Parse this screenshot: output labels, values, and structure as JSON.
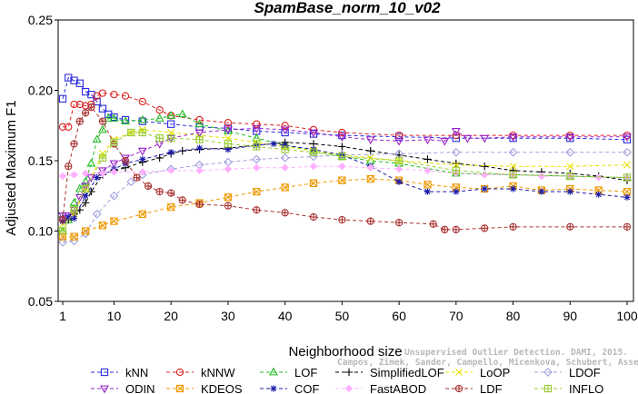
{
  "chart_data": {
    "type": "line",
    "title": "SpamBase_norm_10_v02",
    "xlabel": "Neighborhood size",
    "ylabel": "Adjusted Maximum F1",
    "xlim": [
      0,
      100
    ],
    "ylim": [
      0.05,
      0.25
    ],
    "xticks": [
      1,
      10,
      20,
      30,
      40,
      50,
      60,
      70,
      80,
      90,
      100
    ],
    "xtick_labels": [
      "1",
      "10",
      "20",
      "30",
      "40",
      "50",
      "60",
      "70",
      "80",
      "90",
      "100"
    ],
    "yticks": [
      0.05,
      0.1,
      0.15,
      0.2,
      0.25
    ],
    "ytick_labels": [
      "0.05",
      "0.10",
      "0.15",
      "0.20",
      "0.25"
    ],
    "grid": false,
    "legend_position": "bottom",
    "watermark_lines": [
      "Unsupervised Outlier Detection. DAMI, 2015.",
      "Campos, Zimek, Sander, Campello, Micenkova, Schubert, Assent, Houle"
    ],
    "series": [
      {
        "name": "kNN",
        "color": "#2b2bdd",
        "marker": "square",
        "dash": "4,3",
        "points": [
          [
            1,
            0.194
          ],
          [
            2,
            0.209
          ],
          [
            3,
            0.207
          ],
          [
            4,
            0.205
          ],
          [
            5,
            0.199
          ],
          [
            6,
            0.197
          ],
          [
            7,
            0.192
          ],
          [
            8,
            0.187
          ],
          [
            9,
            0.183
          ],
          [
            10,
            0.181
          ],
          [
            12,
            0.179
          ],
          [
            15,
            0.178
          ],
          [
            20,
            0.176
          ],
          [
            25,
            0.174
          ],
          [
            30,
            0.173
          ],
          [
            35,
            0.171
          ],
          [
            40,
            0.17
          ],
          [
            45,
            0.169
          ],
          [
            50,
            0.168
          ],
          [
            60,
            0.167
          ],
          [
            70,
            0.166
          ],
          [
            80,
            0.166
          ],
          [
            90,
            0.166
          ],
          [
            100,
            0.165
          ]
        ]
      },
      {
        "name": "kNNW",
        "color": "#dd2020",
        "marker": "circle",
        "dash": "4,3",
        "points": [
          [
            1,
            0.174
          ],
          [
            2,
            0.174
          ],
          [
            3,
            0.19
          ],
          [
            4,
            0.19
          ],
          [
            5,
            0.189
          ],
          [
            6,
            0.19
          ],
          [
            7,
            0.196
          ],
          [
            8,
            0.198
          ],
          [
            10,
            0.197
          ],
          [
            12,
            0.196
          ],
          [
            15,
            0.192
          ],
          [
            18,
            0.186
          ],
          [
            20,
            0.182
          ],
          [
            25,
            0.179
          ],
          [
            30,
            0.177
          ],
          [
            35,
            0.176
          ],
          [
            40,
            0.175
          ],
          [
            45,
            0.172
          ],
          [
            50,
            0.17
          ],
          [
            60,
            0.168
          ],
          [
            70,
            0.168
          ],
          [
            80,
            0.168
          ],
          [
            90,
            0.168
          ],
          [
            100,
            0.168
          ]
        ]
      },
      {
        "name": "LOF",
        "color": "#22bb22",
        "marker": "triangle-up",
        "dash": "4,3",
        "points": [
          [
            1,
            0.1
          ],
          [
            2,
            0.108
          ],
          [
            3,
            0.12
          ],
          [
            4,
            0.13
          ],
          [
            5,
            0.135
          ],
          [
            6,
            0.148
          ],
          [
            7,
            0.165
          ],
          [
            8,
            0.172
          ],
          [
            9,
            0.18
          ],
          [
            10,
            0.18
          ],
          [
            12,
            0.178
          ],
          [
            15,
            0.179
          ],
          [
            18,
            0.18
          ],
          [
            20,
            0.182
          ],
          [
            22,
            0.183
          ],
          [
            25,
            0.176
          ],
          [
            30,
            0.171
          ],
          [
            35,
            0.166
          ],
          [
            40,
            0.161
          ],
          [
            45,
            0.157
          ],
          [
            50,
            0.153
          ],
          [
            55,
            0.15
          ],
          [
            60,
            0.148
          ],
          [
            70,
            0.141
          ],
          [
            80,
            0.14
          ],
          [
            90,
            0.139
          ],
          [
            100,
            0.138
          ]
        ]
      },
      {
        "name": "SimplifiedLOF",
        "color": "#000000",
        "marker": "plus",
        "dash": "4,3",
        "points": [
          [
            1,
            0.11
          ],
          [
            2,
            0.108
          ],
          [
            3,
            0.112
          ],
          [
            4,
            0.115
          ],
          [
            5,
            0.12
          ],
          [
            6,
            0.128
          ],
          [
            8,
            0.14
          ],
          [
            10,
            0.143
          ],
          [
            12,
            0.145
          ],
          [
            15,
            0.149
          ],
          [
            18,
            0.152
          ],
          [
            20,
            0.155
          ],
          [
            22,
            0.157
          ],
          [
            25,
            0.158
          ],
          [
            30,
            0.159
          ],
          [
            35,
            0.161
          ],
          [
            40,
            0.163
          ],
          [
            45,
            0.162
          ],
          [
            50,
            0.16
          ],
          [
            55,
            0.157
          ],
          [
            60,
            0.154
          ],
          [
            65,
            0.151
          ],
          [
            70,
            0.148
          ],
          [
            75,
            0.146
          ],
          [
            80,
            0.143
          ],
          [
            85,
            0.142
          ],
          [
            90,
            0.141
          ],
          [
            95,
            0.139
          ],
          [
            100,
            0.136
          ]
        ]
      },
      {
        "name": "LoOP",
        "color": "#e8e000",
        "marker": "x",
        "dash": "4,3",
        "points": [
          [
            1,
            0.105
          ],
          [
            3,
            0.112
          ],
          [
            5,
            0.13
          ],
          [
            8,
            0.155
          ],
          [
            10,
            0.165
          ],
          [
            13,
            0.17
          ],
          [
            15,
            0.172
          ],
          [
            20,
            0.17
          ],
          [
            25,
            0.168
          ],
          [
            30,
            0.166
          ],
          [
            35,
            0.163
          ],
          [
            40,
            0.16
          ],
          [
            45,
            0.157
          ],
          [
            50,
            0.154
          ],
          [
            55,
            0.152
          ],
          [
            60,
            0.15
          ],
          [
            70,
            0.147
          ],
          [
            80,
            0.146
          ],
          [
            90,
            0.146
          ],
          [
            100,
            0.147
          ]
        ]
      },
      {
        "name": "LDOF",
        "color": "#a0a0e0",
        "marker": "diamond",
        "dash": "4,3",
        "points": [
          [
            1,
            0.092
          ],
          [
            3,
            0.093
          ],
          [
            5,
            0.098
          ],
          [
            7,
            0.112
          ],
          [
            10,
            0.125
          ],
          [
            13,
            0.135
          ],
          [
            15,
            0.14
          ],
          [
            20,
            0.144
          ],
          [
            25,
            0.147
          ],
          [
            30,
            0.149
          ],
          [
            35,
            0.151
          ],
          [
            40,
            0.152
          ],
          [
            45,
            0.153
          ],
          [
            50,
            0.154
          ],
          [
            60,
            0.155
          ],
          [
            70,
            0.156
          ],
          [
            80,
            0.156
          ],
          [
            90,
            0.156
          ],
          [
            100,
            0.156
          ]
        ]
      },
      {
        "name": "ODIN",
        "color": "#9922cc",
        "marker": "triangle-down",
        "dash": "4,3",
        "points": [
          [
            1,
            0.111
          ],
          [
            2,
            0.111
          ],
          [
            3,
            0.115
          ],
          [
            4,
            0.124
          ],
          [
            5,
            0.132
          ],
          [
            6,
            0.138
          ],
          [
            8,
            0.143
          ],
          [
            10,
            0.148
          ],
          [
            12,
            0.152
          ],
          [
            15,
            0.157
          ],
          [
            18,
            0.162
          ],
          [
            20,
            0.166
          ],
          [
            25,
            0.17
          ],
          [
            30,
            0.172
          ],
          [
            35,
            0.173
          ],
          [
            40,
            0.172
          ],
          [
            45,
            0.17
          ],
          [
            50,
            0.167
          ],
          [
            55,
            0.165
          ],
          [
            60,
            0.164
          ],
          [
            65,
            0.165
          ],
          [
            68,
            0.164
          ],
          [
            70,
            0.171
          ],
          [
            72,
            0.166
          ],
          [
            75,
            0.166
          ],
          [
            80,
            0.167
          ],
          [
            90,
            0.167
          ],
          [
            100,
            0.167
          ]
        ]
      },
      {
        "name": "KDEOS",
        "color": "#ee9900",
        "marker": "square-x",
        "dash": "4,3",
        "points": [
          [
            1,
            0.096
          ],
          [
            3,
            0.096
          ],
          [
            5,
            0.1
          ],
          [
            8,
            0.104
          ],
          [
            10,
            0.107
          ],
          [
            15,
            0.112
          ],
          [
            20,
            0.117
          ],
          [
            25,
            0.12
          ],
          [
            30,
            0.124
          ],
          [
            35,
            0.128
          ],
          [
            40,
            0.131
          ],
          [
            45,
            0.134
          ],
          [
            50,
            0.136
          ],
          [
            55,
            0.137
          ],
          [
            60,
            0.136
          ],
          [
            65,
            0.133
          ],
          [
            70,
            0.131
          ],
          [
            75,
            0.13
          ],
          [
            80,
            0.132
          ],
          [
            85,
            0.129
          ],
          [
            90,
            0.13
          ],
          [
            95,
            0.129
          ],
          [
            100,
            0.128
          ]
        ]
      },
      {
        "name": "COF",
        "color": "#1a1aaa",
        "marker": "star",
        "dash": "4,3",
        "points": [
          [
            1,
            0.107
          ],
          [
            2,
            0.11
          ],
          [
            3,
            0.109
          ],
          [
            5,
            0.125
          ],
          [
            7,
            0.138
          ],
          [
            10,
            0.144
          ],
          [
            12,
            0.148
          ],
          [
            15,
            0.151
          ],
          [
            20,
            0.156
          ],
          [
            25,
            0.159
          ],
          [
            30,
            0.158
          ],
          [
            35,
            0.161
          ],
          [
            38,
            0.162
          ],
          [
            40,
            0.161
          ],
          [
            45,
            0.158
          ],
          [
            50,
            0.154
          ],
          [
            55,
            0.146
          ],
          [
            60,
            0.135
          ],
          [
            65,
            0.128
          ],
          [
            70,
            0.128
          ],
          [
            75,
            0.13
          ],
          [
            80,
            0.13
          ],
          [
            85,
            0.128
          ],
          [
            90,
            0.128
          ],
          [
            95,
            0.126
          ],
          [
            100,
            0.124
          ]
        ]
      },
      {
        "name": "FastABOD",
        "color": "#ffb0ff",
        "marker": "diamond-filled",
        "dash": "4,3",
        "points": [
          [
            1,
            0.139
          ],
          [
            3,
            0.14
          ],
          [
            5,
            0.141
          ],
          [
            8,
            0.141
          ],
          [
            10,
            0.142
          ],
          [
            15,
            0.142
          ],
          [
            20,
            0.143
          ],
          [
            25,
            0.143
          ],
          [
            30,
            0.144
          ],
          [
            35,
            0.145
          ],
          [
            40,
            0.145
          ],
          [
            45,
            0.146
          ],
          [
            50,
            0.146
          ],
          [
            55,
            0.145
          ],
          [
            60,
            0.144
          ],
          [
            65,
            0.143
          ],
          [
            70,
            0.141
          ],
          [
            75,
            0.14
          ],
          [
            80,
            0.14
          ],
          [
            85,
            0.139
          ],
          [
            90,
            0.139
          ],
          [
            95,
            0.138
          ],
          [
            100,
            0.138
          ]
        ]
      },
      {
        "name": "LDF",
        "color": "#aa3333",
        "marker": "circle-plus",
        "dash": "4,3",
        "points": [
          [
            1,
            0.108
          ],
          [
            2,
            0.146
          ],
          [
            3,
            0.162
          ],
          [
            4,
            0.178
          ],
          [
            5,
            0.184
          ],
          [
            6,
            0.188
          ],
          [
            8,
            0.178
          ],
          [
            10,
            0.162
          ],
          [
            12,
            0.15
          ],
          [
            14,
            0.138
          ],
          [
            16,
            0.132
          ],
          [
            18,
            0.128
          ],
          [
            20,
            0.127
          ],
          [
            22,
            0.122
          ],
          [
            25,
            0.119
          ],
          [
            30,
            0.118
          ],
          [
            35,
            0.115
          ],
          [
            40,
            0.113
          ],
          [
            45,
            0.11
          ],
          [
            50,
            0.108
          ],
          [
            55,
            0.107
          ],
          [
            60,
            0.106
          ],
          [
            66,
            0.105
          ],
          [
            68,
            0.101
          ],
          [
            70,
            0.101
          ],
          [
            75,
            0.102
          ],
          [
            80,
            0.103
          ],
          [
            90,
            0.103
          ],
          [
            100,
            0.103
          ]
        ]
      },
      {
        "name": "INFLO",
        "color": "#99cc33",
        "marker": "square-plus",
        "dash": "4,3",
        "points": [
          [
            1,
            0.1
          ],
          [
            3,
            0.115
          ],
          [
            5,
            0.13
          ],
          [
            8,
            0.152
          ],
          [
            10,
            0.163
          ],
          [
            13,
            0.17
          ],
          [
            15,
            0.17
          ],
          [
            18,
            0.166
          ],
          [
            20,
            0.166
          ],
          [
            25,
            0.165
          ],
          [
            30,
            0.162
          ],
          [
            35,
            0.16
          ],
          [
            40,
            0.158
          ],
          [
            45,
            0.156
          ],
          [
            50,
            0.153
          ],
          [
            60,
            0.15
          ],
          [
            70,
            0.143
          ],
          [
            80,
            0.14
          ],
          [
            90,
            0.139
          ],
          [
            100,
            0.138
          ]
        ]
      }
    ]
  }
}
